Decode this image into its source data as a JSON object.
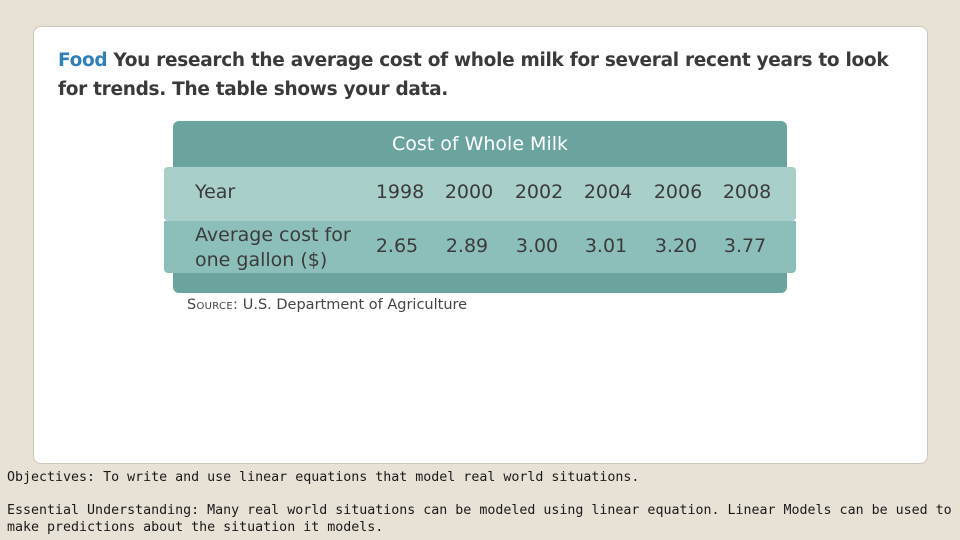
{
  "problem": {
    "lead": "Food",
    "text": "You research the average cost of whole milk for several recent years to look for trends. The table shows your data."
  },
  "table": {
    "title": "Cost of Whole Milk",
    "year_label": "Year",
    "cost_label_line1": "Average cost for",
    "cost_label_line2": "one gallon ($)",
    "years": [
      "1998",
      "2000",
      "2002",
      "2004",
      "2006",
      "2008"
    ],
    "costs": [
      "2.65",
      "2.89",
      "3.00",
      "3.01",
      "3.20",
      "3.77"
    ]
  },
  "source": {
    "label": "Source:",
    "text": "U.S. Department of Agriculture"
  },
  "footer": {
    "objectives": "Objectives: To write and use linear equations that model real world situations.",
    "understanding": "Essential Understanding: Many real world situations can be modeled using  linear equation.  Linear Models can be used to make predictions about the situation it models."
  },
  "colors": {
    "header": "#6ba39f",
    "year_row": "#a9cfcb",
    "cost_row": "#8dbfba",
    "lead": "#2f7fb8",
    "background": "#e8e1d6"
  }
}
